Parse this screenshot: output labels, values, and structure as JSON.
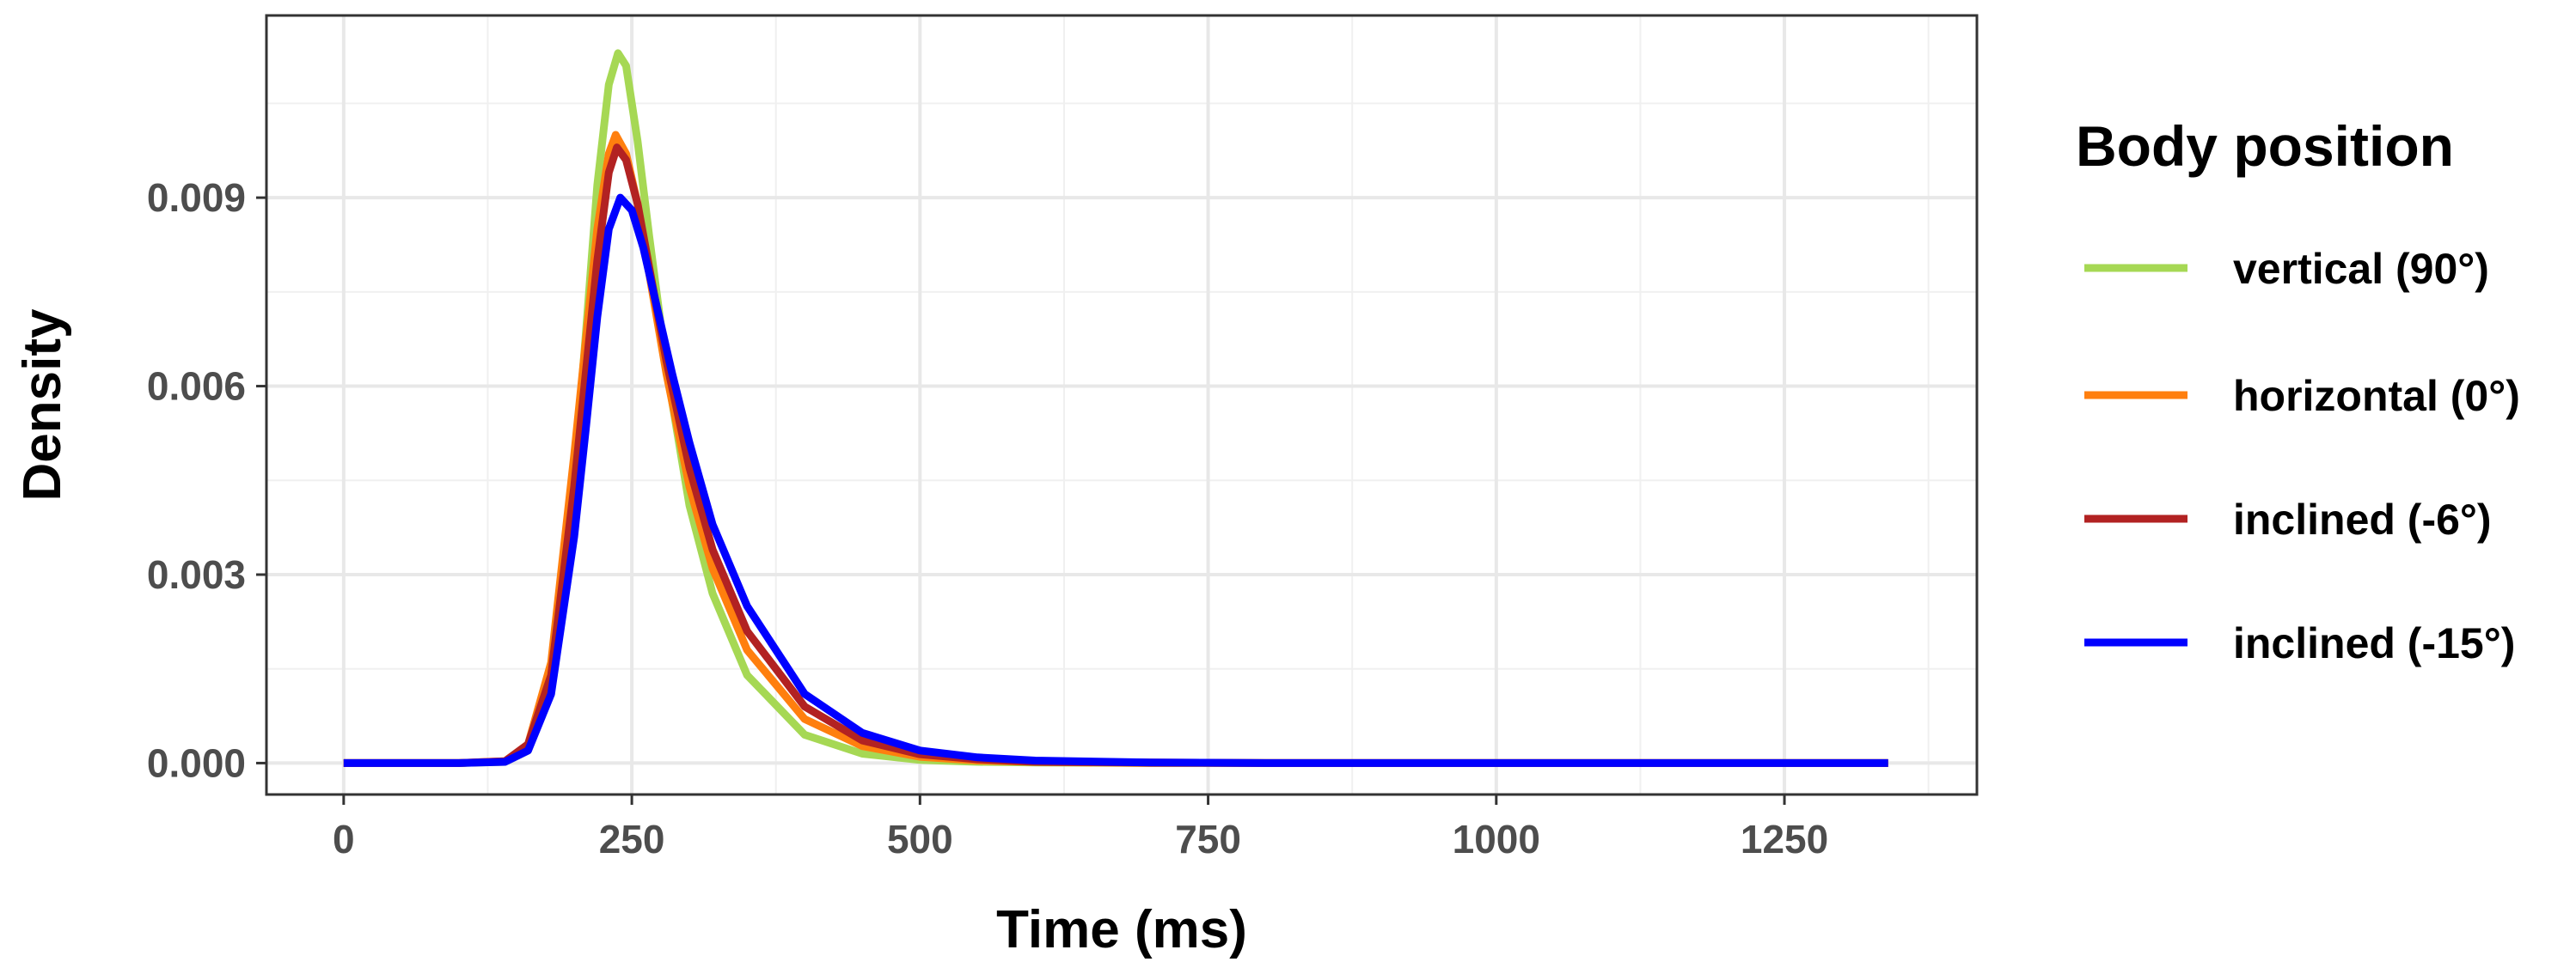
{
  "chart_data": {
    "type": "line",
    "xlabel": "Time (ms)",
    "ylabel": "Density",
    "xlim": [
      -67,
      1417
    ],
    "ylim": [
      -0.0005,
      0.0119
    ],
    "x_ticks": [
      0,
      250,
      500,
      750,
      1000,
      1250
    ],
    "x_tick_labels": [
      "0",
      "250",
      "500",
      "750",
      "1000",
      "1250"
    ],
    "y_ticks": [
      0,
      0.003,
      0.006,
      0.009
    ],
    "y_tick_labels": [
      "0.000",
      "0.003",
      "0.006",
      "0.009"
    ],
    "grid": true,
    "legend": {
      "title": "Body position",
      "position": "right"
    },
    "series": [
      {
        "name": "vertical (90°)",
        "color": "#a6d854",
        "x": [
          0,
          100,
          140,
          160,
          180,
          200,
          210,
          220,
          230,
          238,
          245,
          255,
          265,
          280,
          300,
          320,
          350,
          400,
          450,
          500,
          550,
          600,
          700,
          800,
          1000,
          1200,
          1340
        ],
        "y": [
          0,
          0,
          2e-05,
          0.0002,
          0.0013,
          0.0045,
          0.0068,
          0.0092,
          0.0108,
          0.0113,
          0.0111,
          0.0099,
          0.0084,
          0.0063,
          0.0041,
          0.0027,
          0.0014,
          0.00045,
          0.00015,
          5e-05,
          2e-05,
          1e-05,
          0,
          0,
          0,
          0,
          0
        ]
      },
      {
        "name": "horizontal (0°)",
        "color": "#ff7f0e",
        "x": [
          0,
          100,
          140,
          160,
          180,
          200,
          210,
          220,
          230,
          236,
          245,
          255,
          265,
          280,
          300,
          320,
          350,
          400,
          450,
          500,
          550,
          600,
          700,
          800,
          1000,
          1200,
          1340
        ],
        "y": [
          0,
          0,
          3e-05,
          0.0003,
          0.0016,
          0.0049,
          0.0067,
          0.0085,
          0.0097,
          0.01,
          0.0097,
          0.0089,
          0.0078,
          0.0062,
          0.0044,
          0.0031,
          0.0018,
          0.0007,
          0.00027,
          0.0001,
          4e-05,
          2e-05,
          0,
          0,
          0,
          0,
          0
        ]
      },
      {
        "name": "inclined (-6°)",
        "color": "#b22222",
        "x": [
          0,
          100,
          140,
          160,
          180,
          200,
          210,
          220,
          230,
          237,
          245,
          255,
          265,
          280,
          300,
          320,
          350,
          400,
          450,
          500,
          550,
          600,
          700,
          800,
          1000,
          1200,
          1340
        ],
        "y": [
          0,
          0,
          3e-05,
          0.0003,
          0.0014,
          0.0044,
          0.0062,
          0.008,
          0.0094,
          0.0098,
          0.0096,
          0.0089,
          0.0079,
          0.0064,
          0.0047,
          0.0034,
          0.0021,
          0.0009,
          0.00036,
          0.00014,
          6e-05,
          2e-05,
          1e-05,
          0,
          0,
          0,
          0
        ]
      },
      {
        "name": "inclined (-15°)",
        "color": "#0000ff",
        "x": [
          0,
          100,
          140,
          160,
          180,
          200,
          210,
          220,
          230,
          240,
          250,
          260,
          270,
          285,
          300,
          320,
          350,
          400,
          450,
          500,
          550,
          600,
          700,
          800,
          1000,
          1200,
          1340
        ],
        "y": [
          0,
          0,
          2e-05,
          0.0002,
          0.0011,
          0.0036,
          0.0053,
          0.0071,
          0.0085,
          0.009,
          0.0088,
          0.0082,
          0.0074,
          0.0062,
          0.0051,
          0.0038,
          0.0025,
          0.0011,
          0.00048,
          0.0002,
          9e-05,
          4e-05,
          1e-05,
          0,
          0,
          0,
          0
        ]
      }
    ]
  }
}
